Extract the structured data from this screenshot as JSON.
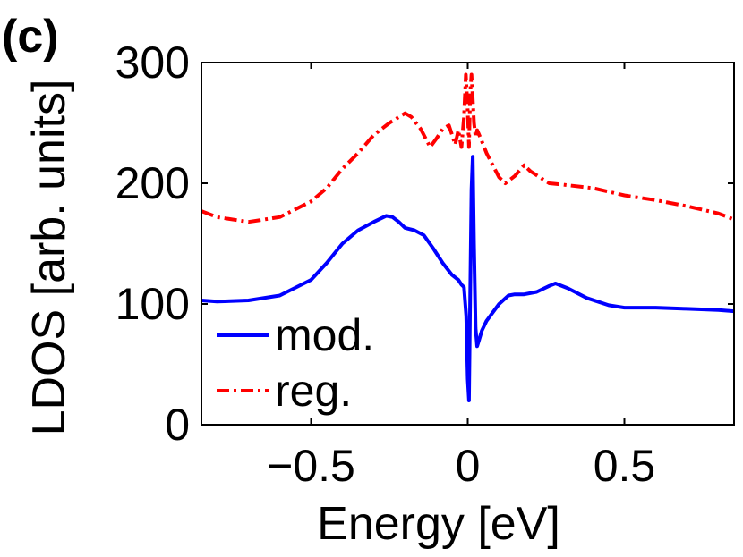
{
  "chart_data": {
    "type": "line",
    "panel_label": "(c)",
    "title": "",
    "xlabel": "Energy [eV]",
    "ylabel": "LDOS [arb. units]",
    "xlim": [
      -0.85,
      0.85
    ],
    "ylim": [
      0,
      300
    ],
    "xticks": [
      -0.5,
      0,
      0.5
    ],
    "xtick_labels": [
      "−0.5",
      "0",
      "0.5"
    ],
    "yticks": [
      0,
      100,
      200,
      300
    ],
    "ytick_labels": [
      "0",
      "100",
      "200",
      "300"
    ],
    "grid": false,
    "legend_position": "bottom-left",
    "series": [
      {
        "name": "mod.",
        "color": "#0000ff",
        "style": "solid",
        "x": [
          -0.85,
          -0.8,
          -0.7,
          -0.6,
          -0.5,
          -0.45,
          -0.4,
          -0.35,
          -0.3,
          -0.26,
          -0.24,
          -0.22,
          -0.2,
          -0.17,
          -0.14,
          -0.11,
          -0.08,
          -0.05,
          -0.03,
          -0.02,
          -0.012,
          -0.005,
          0.0,
          0.004,
          0.008,
          0.012,
          0.016,
          0.02,
          0.025,
          0.03,
          0.036,
          0.045,
          0.06,
          0.08,
          0.1,
          0.13,
          0.15,
          0.18,
          0.22,
          0.26,
          0.28,
          0.32,
          0.38,
          0.45,
          0.5,
          0.6,
          0.7,
          0.8,
          0.85
        ],
        "y": [
          103,
          102,
          103,
          107,
          120,
          134,
          150,
          161,
          168,
          173,
          172,
          168,
          163,
          161,
          157,
          146,
          134,
          124,
          120,
          116,
          114,
          90,
          38,
          20,
          110,
          195,
          222,
          150,
          80,
          65,
          70,
          78,
          86,
          93,
          100,
          107,
          108,
          108,
          110,
          115,
          117,
          113,
          105,
          99,
          97,
          97,
          96,
          95,
          94
        ]
      },
      {
        "name": "reg.",
        "color": "#ff0000",
        "style": "dashdot",
        "x": [
          -0.85,
          -0.8,
          -0.7,
          -0.6,
          -0.5,
          -0.45,
          -0.4,
          -0.35,
          -0.3,
          -0.25,
          -0.2,
          -0.18,
          -0.15,
          -0.12,
          -0.1,
          -0.08,
          -0.06,
          -0.04,
          -0.03,
          -0.02,
          -0.012,
          -0.006,
          0.0,
          0.004,
          0.008,
          0.012,
          0.016,
          0.02,
          0.025,
          0.03,
          0.04,
          0.06,
          0.08,
          0.1,
          0.12,
          0.15,
          0.18,
          0.2,
          0.23,
          0.26,
          0.3,
          0.4,
          0.5,
          0.6,
          0.7,
          0.8,
          0.85
        ],
        "y": [
          177,
          172,
          168,
          172,
          185,
          196,
          212,
          225,
          240,
          250,
          258,
          255,
          245,
          230,
          237,
          245,
          248,
          232,
          244,
          230,
          255,
          290,
          260,
          230,
          275,
          290,
          270,
          250,
          238,
          244,
          238,
          225,
          215,
          205,
          200,
          206,
          215,
          210,
          205,
          200,
          199,
          196,
          190,
          186,
          181,
          175,
          170
        ]
      }
    ]
  }
}
